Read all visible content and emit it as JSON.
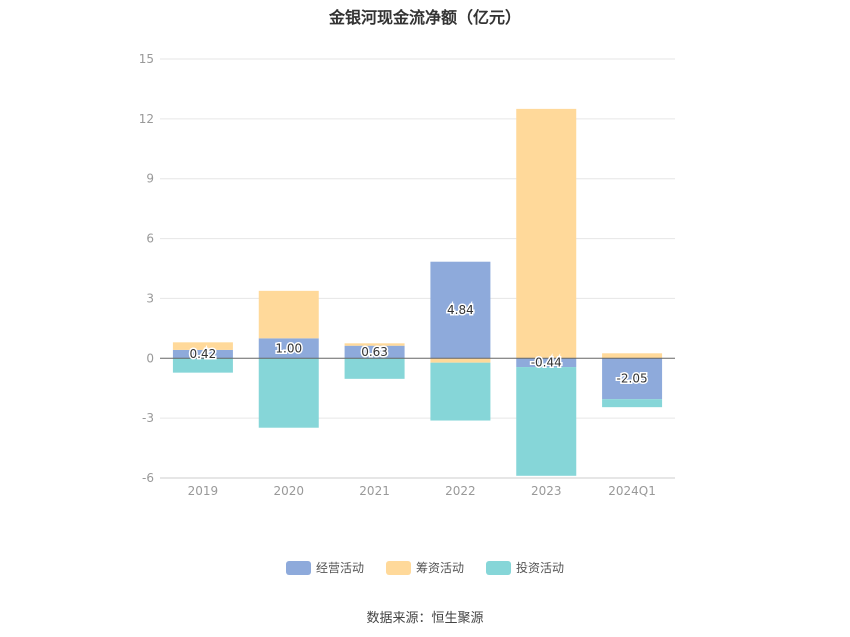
{
  "title": "金银河现金流净额（亿元）",
  "source": "数据来源：恒生聚源",
  "colors": {
    "operating": "#8eaadb",
    "financing": "#ffd99a",
    "investing": "#86d6d8",
    "grid": "#e6e6e6",
    "axis": "#666666"
  },
  "chart_data": {
    "type": "bar",
    "stacked": true,
    "title": "金银河现金流净额（亿元）",
    "categories": [
      "2019",
      "2020",
      "2021",
      "2022",
      "2023",
      "2024Q1"
    ],
    "ylim": [
      -6,
      15
    ],
    "yticks": [
      -6,
      -3,
      0,
      3,
      6,
      9,
      12,
      15
    ],
    "grid": true,
    "legend_position": "bottom",
    "series": [
      {
        "name": "经营活动",
        "key": "operating",
        "values": [
          0.42,
          1.0,
          0.63,
          4.84,
          -0.44,
          -2.05
        ],
        "labels": [
          "0.42",
          "1.00",
          "0.63",
          "4.84",
          "-0.44",
          "-2.05"
        ]
      },
      {
        "name": "筹资活动",
        "key": "financing",
        "values": [
          0.38,
          2.38,
          0.12,
          -0.22,
          12.5,
          0.25
        ]
      },
      {
        "name": "投资活动",
        "key": "investing",
        "values": [
          -0.72,
          -3.48,
          -1.03,
          -2.9,
          -5.45,
          -0.4
        ]
      }
    ]
  }
}
